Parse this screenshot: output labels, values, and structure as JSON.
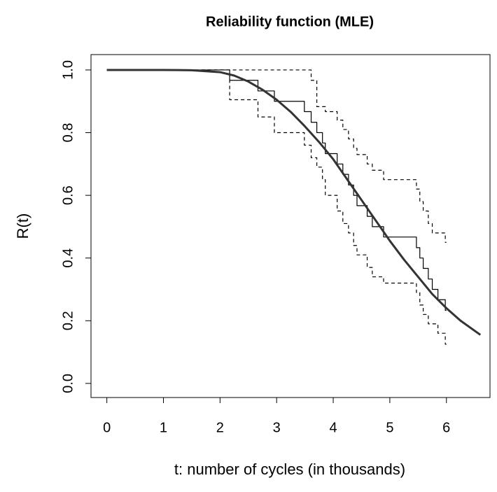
{
  "chart_data": {
    "type": "line",
    "title": "Reliability function (MLE)",
    "x_label": "t: number of cycles (in thousands)",
    "y_label": "R(t)",
    "xlim": [
      -0.28,
      6.77
    ],
    "ylim": [
      -0.045,
      1.049
    ],
    "xticks": [
      0,
      1,
      2,
      3,
      4,
      5,
      6
    ],
    "yticks": [
      {
        "value": 0,
        "label": "0.0"
      },
      0.2,
      0.4,
      0.6,
      0.8,
      {
        "value": 1,
        "label": "1.0"
      }
    ],
    "series": [
      {
        "color": "#000000",
        "linestyle": "solid",
        "linewidth": 1.2,
        "step": true,
        "x": [
          0,
          2.17,
          2.67,
          2.96,
          3.49,
          3.61,
          3.71,
          3.81,
          3.86,
          4.07,
          4.17,
          4.27,
          4.36,
          4.42,
          4.6,
          4.69,
          4.89,
          5.47,
          5.53,
          5.59,
          5.68,
          5.75,
          5.85,
          5.98,
          6.0
        ],
        "values": [
          1,
          0.967,
          0.933,
          0.9,
          0.867,
          0.833,
          0.8,
          0.767,
          0.733,
          0.7,
          0.667,
          0.633,
          0.6,
          0.567,
          0.533,
          0.5,
          0.467,
          0.433,
          0.4,
          0.367,
          0.333,
          0.3,
          0.267,
          0.233,
          0.233
        ]
      },
      {
        "color": "#000000",
        "linestyle": "dashed",
        "linewidth": 1.2,
        "step": true,
        "x": [
          0,
          3.61,
          3.71,
          3.86,
          4.07,
          4.17,
          4.27,
          4.36,
          4.42,
          4.6,
          4.69,
          4.89,
          5.47,
          5.53,
          5.59,
          5.68,
          5.75,
          5.98,
          6.0
        ],
        "values": [
          1,
          0.967,
          0.883,
          0.867,
          0.84,
          0.81,
          0.78,
          0.75,
          0.73,
          0.7,
          0.68,
          0.65,
          0.62,
          0.58,
          0.55,
          0.51,
          0.48,
          0.45,
          0.45
        ]
      },
      {
        "color": "#000000",
        "linestyle": "dashed",
        "linewidth": 1.2,
        "step": true,
        "x": [
          0,
          2.17,
          2.67,
          2.96,
          3.49,
          3.61,
          3.71,
          3.81,
          3.86,
          4.07,
          4.17,
          4.27,
          4.36,
          4.42,
          4.6,
          4.69,
          4.89,
          5.47,
          5.53,
          5.59,
          5.68,
          5.85,
          5.98,
          6.0
        ],
        "values": [
          1,
          0.905,
          0.85,
          0.8,
          0.76,
          0.72,
          0.69,
          0.65,
          0.6,
          0.55,
          0.51,
          0.48,
          0.44,
          0.41,
          0.37,
          0.34,
          0.32,
          0.29,
          0.25,
          0.22,
          0.19,
          0.16,
          0.125,
          0.125
        ]
      },
      {
        "color": "#333333",
        "linestyle": "solid",
        "linewidth": 3,
        "step": false,
        "x": [
          0,
          0.5,
          1,
          1.5,
          2,
          2.25,
          2.5,
          2.75,
          3,
          3.25,
          3.5,
          3.75,
          4,
          4.25,
          4.5,
          4.75,
          5,
          5.25,
          5.5,
          5.75,
          6,
          6.25,
          6.6
        ],
        "values": [
          1,
          1,
          1,
          0.999,
          0.993,
          0.982,
          0.963,
          0.937,
          0.905,
          0.866,
          0.82,
          0.77,
          0.715,
          0.65,
          0.585,
          0.52,
          0.455,
          0.395,
          0.34,
          0.285,
          0.24,
          0.2,
          0.155
        ]
      }
    ]
  }
}
